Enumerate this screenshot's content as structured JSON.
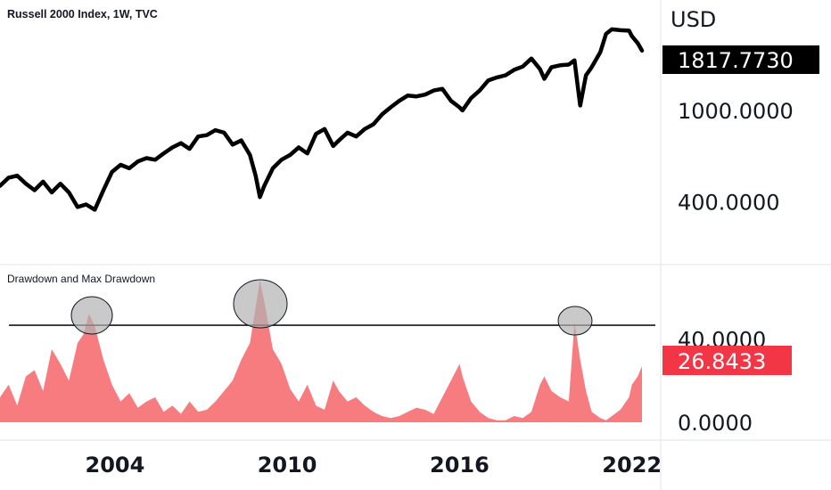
{
  "chart_data": [
    {
      "type": "line",
      "title": "Russell 2000 Index, 1W, TVC",
      "ylabel": "USD",
      "yscale": "log",
      "ylim": [
        260,
        2350
      ],
      "y_ticks": [
        "1000.0000",
        "400.0000"
      ],
      "y_tick_values": [
        1000,
        400
      ],
      "last_value_label": "1817.7730",
      "color": "#000000",
      "badge_color": "#000000",
      "x": [
        2000.0,
        2000.3,
        2000.6,
        2000.9,
        2001.2,
        2001.5,
        2001.8,
        2002.1,
        2002.4,
        2002.7,
        2003.0,
        2003.3,
        2003.6,
        2003.9,
        2004.2,
        2004.5,
        2004.8,
        2005.1,
        2005.4,
        2005.7,
        2006.0,
        2006.3,
        2006.6,
        2006.9,
        2007.2,
        2007.5,
        2007.8,
        2008.1,
        2008.4,
        2008.7,
        2008.9,
        2009.05,
        2009.2,
        2009.5,
        2009.8,
        2010.1,
        2010.4,
        2010.7,
        2011.0,
        2011.3,
        2011.6,
        2011.8,
        2012.1,
        2012.4,
        2012.7,
        2013.0,
        2013.3,
        2013.6,
        2013.9,
        2014.2,
        2014.5,
        2014.8,
        2015.1,
        2015.4,
        2015.7,
        2016.0,
        2016.1,
        2016.4,
        2016.7,
        2017.0,
        2017.3,
        2017.6,
        2017.9,
        2018.2,
        2018.5,
        2018.8,
        2018.95,
        2019.2,
        2019.5,
        2019.8,
        2020.0,
        2020.2,
        2020.4,
        2020.6,
        2020.9,
        2021.1,
        2021.3,
        2021.6,
        2021.9,
        2022.0,
        2022.2,
        2022.35
      ],
      "values": [
        470,
        510,
        520,
        480,
        450,
        490,
        440,
        480,
        440,
        380,
        390,
        370,
        450,
        540,
        580,
        560,
        600,
        620,
        610,
        650,
        690,
        720,
        680,
        770,
        780,
        820,
        800,
        710,
        740,
        640,
        520,
        420,
        470,
        560,
        610,
        640,
        690,
        650,
        790,
        830,
        700,
        740,
        800,
        770,
        830,
        870,
        960,
        1030,
        1100,
        1160,
        1150,
        1170,
        1220,
        1240,
        1100,
        1030,
        1000,
        1130,
        1220,
        1350,
        1390,
        1420,
        1500,
        1550,
        1680,
        1510,
        1370,
        1540,
        1570,
        1580,
        1650,
        1050,
        1420,
        1540,
        1790,
        2150,
        2250,
        2230,
        2220,
        2100,
        1960,
        1817.773
      ]
    },
    {
      "type": "area",
      "title": "Drawdown and Max Drawdown",
      "ylim": [
        0,
        70
      ],
      "y_ticks": [
        "40.0000",
        "0.0000"
      ],
      "y_tick_values": [
        40,
        0
      ],
      "last_value_label": "26.8433",
      "color": "#f77c80",
      "badge_color": "#f23645",
      "hline": 46.5,
      "x": [
        2000.0,
        2000.3,
        2000.6,
        2000.9,
        2001.2,
        2001.5,
        2001.8,
        2002.1,
        2002.4,
        2002.7,
        2002.9,
        2003.1,
        2003.3,
        2003.6,
        2003.9,
        2004.2,
        2004.5,
        2004.8,
        2005.1,
        2005.4,
        2005.7,
        2006.0,
        2006.3,
        2006.6,
        2006.9,
        2007.2,
        2007.5,
        2007.8,
        2008.1,
        2008.4,
        2008.7,
        2008.9,
        2009.05,
        2009.2,
        2009.5,
        2009.8,
        2010.1,
        2010.4,
        2010.7,
        2011.0,
        2011.3,
        2011.6,
        2011.8,
        2012.1,
        2012.4,
        2012.7,
        2013.0,
        2013.3,
        2013.6,
        2013.9,
        2014.2,
        2014.5,
        2014.8,
        2015.1,
        2015.4,
        2015.7,
        2016.0,
        2016.1,
        2016.4,
        2016.7,
        2017.0,
        2017.3,
        2017.6,
        2017.9,
        2018.2,
        2018.5,
        2018.8,
        2018.95,
        2019.2,
        2019.5,
        2019.8,
        2020.0,
        2020.2,
        2020.4,
        2020.6,
        2020.9,
        2021.1,
        2021.3,
        2021.6,
        2021.9,
        2022.0,
        2022.2,
        2022.35
      ],
      "values": [
        12,
        18,
        8,
        22,
        25,
        15,
        35,
        28,
        20,
        38,
        42,
        52,
        46,
        30,
        18,
        10,
        14,
        7,
        10,
        12,
        5,
        8,
        4,
        10,
        5,
        6,
        10,
        15,
        20,
        30,
        38,
        55,
        68,
        58,
        35,
        28,
        16,
        10,
        18,
        8,
        6,
        20,
        15,
        10,
        12,
        8,
        5,
        3,
        2,
        3,
        5,
        7,
        6,
        4,
        12,
        20,
        28,
        22,
        10,
        5,
        2,
        1,
        1,
        3,
        2,
        5,
        18,
        22,
        15,
        12,
        10,
        48,
        30,
        15,
        5,
        2,
        1,
        3,
        6,
        12,
        18,
        22,
        26.8433
      ]
    }
  ],
  "x_axis": {
    "ticks": [
      "2004",
      "2010",
      "2016",
      "2022"
    ],
    "tick_values": [
      2004,
      2010,
      2016,
      2022
    ]
  },
  "annotations": {
    "circle_color": "#b2b2b2"
  }
}
